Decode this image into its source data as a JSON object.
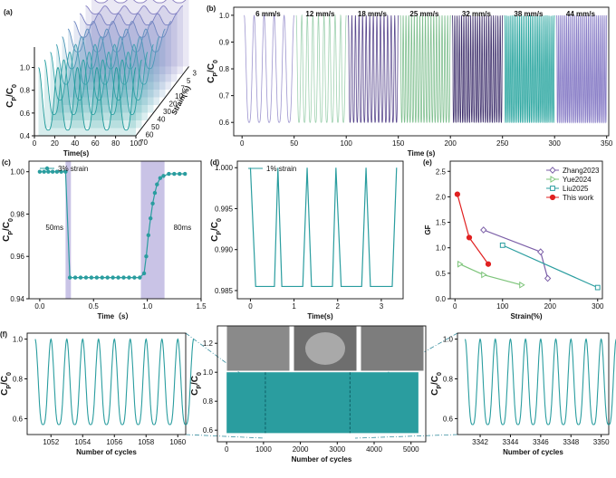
{
  "chart_data": [
    {
      "type": "waterfall",
      "panel": "(a)",
      "xlabel": "Time(s)",
      "ylabel_parts": [
        "C",
        "P",
        "/C",
        "0"
      ],
      "zlabel": "Strain(%)",
      "xlim": [
        0,
        100
      ],
      "ylim": [
        0.4,
        1.1
      ],
      "xticks": [
        0,
        20,
        40,
        60,
        80,
        100
      ],
      "yticks": [
        {
          "value": 0.4,
          "label": "0.4"
        },
        {
          "value": 0.6,
          "label": "0.6"
        },
        {
          "value": 0.8,
          "label": "0.8"
        },
        {
          "value": 1.0,
          "label": "1.0"
        }
      ],
      "cycles": 5,
      "peak": 1.0,
      "series": [
        {
          "name": "3",
          "color": "#8a7fc0",
          "min": 0.96
        },
        {
          "name": "5",
          "color": "#847fc2",
          "min": 0.93
        },
        {
          "name": "7",
          "color": "#7a80c2",
          "min": 0.9
        },
        {
          "name": "10",
          "color": "#6f86c0",
          "min": 0.86
        },
        {
          "name": "20",
          "color": "#5f8fbe",
          "min": 0.8
        },
        {
          "name": "30",
          "color": "#4f98b8",
          "min": 0.72
        },
        {
          "name": "40",
          "color": "#41a0b2",
          "min": 0.65
        },
        {
          "name": "50",
          "color": "#35a3aa",
          "min": 0.58
        },
        {
          "name": "60",
          "color": "#2aa0a2",
          "min": 0.52
        },
        {
          "name": "70",
          "color": "#1f9a9a",
          "min": 0.45
        }
      ]
    },
    {
      "type": "segments",
      "panel": "(b)",
      "xlabel": "Time (s)",
      "ylabel_parts": [
        "C",
        "P",
        "/C",
        "0"
      ],
      "xlim": [
        -8,
        352
      ],
      "ylim": [
        0.55,
        1.03
      ],
      "xticks": [
        0,
        50,
        100,
        150,
        200,
        250,
        300,
        350
      ],
      "yticks": [
        {
          "value": 0.6,
          "label": "0.6"
        },
        0.7,
        0.8,
        0.9,
        {
          "value": 1.0,
          "label": "1.0"
        }
      ],
      "peak": 1.0,
      "series": [
        {
          "name": "6 mm/s",
          "color": "#9d95cf",
          "x": [
            0,
            50
          ],
          "cycles": 5,
          "min": 0.6
        },
        {
          "name": "12 mm/s",
          "color": "#9fd1b0",
          "x": [
            50,
            100
          ],
          "cycles": 9,
          "min": 0.6
        },
        {
          "name": "18 mm/s",
          "color": "#5b4a8f",
          "x": [
            100,
            150
          ],
          "cycles": 14,
          "min": 0.6
        },
        {
          "name": "25 mm/s",
          "color": "#7fbf8f",
          "x": [
            150,
            200
          ],
          "cycles": 18,
          "min": 0.6
        },
        {
          "name": "32 mm/s",
          "color": "#3d2e6b",
          "x": [
            200,
            250
          ],
          "cycles": 22,
          "min": 0.6
        },
        {
          "name": "38 mm/s",
          "color": "#2aa6a0",
          "x": [
            250,
            300
          ],
          "cycles": 27,
          "min": 0.6
        },
        {
          "name": "44 mm/s",
          "color": "#8b80c8",
          "x": [
            300,
            350
          ],
          "cycles": 30,
          "min": 0.6
        }
      ]
    },
    {
      "type": "line",
      "panel": "(c)",
      "xlabel": "Time（s）",
      "ylabel_parts": [
        "C",
        "P",
        "/C",
        "0"
      ],
      "xlim": [
        -0.1,
        1.5
      ],
      "ylim": [
        0.94,
        1.005
      ],
      "xticks": [
        {
          "value": 0,
          "label": "0.0"
        },
        0.5,
        {
          "value": 1,
          "label": "1.0"
        },
        1.5
      ],
      "yticks": [
        0.94,
        0.96,
        0.98,
        {
          "value": 1,
          "label": "1.00"
        }
      ],
      "markers": true,
      "spans": [
        {
          "x": [
            0.24,
            0.29
          ],
          "label": "50ms"
        },
        {
          "x": [
            0.94,
            1.16
          ],
          "label": "80ms"
        }
      ],
      "span_color": "#c9c3e6",
      "series": [
        {
          "name": "3% strain",
          "color": "#2a9d9f",
          "x": [
            0,
            0.04,
            0.08,
            0.12,
            0.16,
            0.2,
            0.24,
            0.28,
            0.33,
            0.38,
            0.43,
            0.48,
            0.53,
            0.58,
            0.63,
            0.68,
            0.73,
            0.78,
            0.83,
            0.88,
            0.93,
            0.97,
            0.99,
            1.01,
            1.03,
            1.05,
            1.07,
            1.09,
            1.12,
            1.15,
            1.2,
            1.25,
            1.3,
            1.35
          ],
          "values": [
            1.0,
            1.0,
            1.0,
            1.0,
            1.0,
            1.0,
            1.0,
            0.95,
            0.95,
            0.95,
            0.95,
            0.95,
            0.95,
            0.95,
            0.95,
            0.95,
            0.95,
            0.95,
            0.95,
            0.95,
            0.95,
            0.952,
            0.96,
            0.97,
            0.978,
            0.985,
            0.99,
            0.994,
            0.997,
            0.998,
            0.999,
            0.999,
            0.999,
            0.999
          ]
        }
      ]
    },
    {
      "type": "line",
      "panel": "(d)",
      "xlabel": "Time(s)",
      "ylabel_parts": [
        "C",
        "P",
        "/C",
        "0"
      ],
      "xlim": [
        -0.3,
        3.5
      ],
      "ylim": [
        0.984,
        1.0008
      ],
      "xticks": [
        0,
        1,
        2,
        3
      ],
      "yticks": [
        0.985,
        {
          "value": 0.99,
          "label": "0.990"
        },
        0.995,
        {
          "value": 1,
          "label": "1.000"
        }
      ],
      "markers": false,
      "series": [
        {
          "name": "1% strain",
          "color": "#2a9d9f",
          "x": [
            0,
            0.12,
            0.55,
            0.63,
            0.72,
            1.2,
            1.3,
            1.4,
            1.88,
            1.96,
            2.08,
            2.55,
            2.65,
            2.75,
            3.25,
            3.35
          ],
          "values": [
            1.0,
            0.9855,
            0.9855,
            1.0,
            0.9855,
            0.9855,
            1.0,
            0.9855,
            0.9855,
            1.0,
            0.9855,
            0.9855,
            1.0,
            0.9855,
            0.9855,
            1.0
          ]
        }
      ]
    },
    {
      "type": "scatterline",
      "panel": "(e)",
      "xlabel": "Strain(%)",
      "ylabel": "GF",
      "xlim": [
        -10,
        310
      ],
      "ylim": [
        0,
        2.7
      ],
      "xticks": [
        0,
        100,
        200,
        300
      ],
      "yticks": [
        {
          "value": 0,
          "label": "0.0"
        },
        0.5,
        {
          "value": 1,
          "label": "1.0"
        },
        1.5,
        {
          "value": 2,
          "label": "2.0"
        },
        2.5
      ],
      "legend": "upper right",
      "series": [
        {
          "name": "Zhang2023",
          "color": "#7b5ea7",
          "marker": "diamond",
          "x": [
            60,
            180,
            195
          ],
          "values": [
            1.35,
            0.92,
            0.4
          ]
        },
        {
          "name": "Yue2024",
          "color": "#7dc47a",
          "marker": "triangle",
          "x": [
            10,
            60,
            140
          ],
          "values": [
            0.68,
            0.47,
            0.27
          ]
        },
        {
          "name": "Liu2025",
          "color": "#2a9d9f",
          "marker": "square",
          "x": [
            100,
            300
          ],
          "values": [
            1.05,
            0.22
          ]
        },
        {
          "name": "This work",
          "color": "#e02020",
          "marker": "circle",
          "x": [
            5,
            30,
            70
          ],
          "values": [
            2.05,
            1.2,
            0.68
          ]
        }
      ]
    },
    {
      "type": "wave",
      "panel": "(f)",
      "xlabel": "Number of cycles",
      "ylabel_parts": [
        "C",
        "P",
        "/C",
        "0"
      ],
      "xlim": [
        1050.5,
        1060.5
      ],
      "ylim": [
        0.52,
        1.03
      ],
      "xticks": [
        1052,
        1054,
        1056,
        1058,
        1060
      ],
      "yticks": [
        {
          "value": 0.6,
          "label": "0.6"
        },
        {
          "value": 0.8,
          "label": "0.8"
        },
        {
          "value": 1.0,
          "label": "1.0"
        }
      ],
      "cycles": 10,
      "min": 0.57,
      "peak": 1.0,
      "color": "#2a9d9f"
    },
    {
      "type": "band",
      "xlabel": "Number of cycles",
      "ylabel_parts": [
        "C",
        "P",
        "/C",
        "0"
      ],
      "xlim": [
        -250,
        5400
      ],
      "ylim": [
        0.52,
        1.32
      ],
      "xticks": [
        0,
        1000,
        2000,
        3000,
        4000,
        5000
      ],
      "yticks": [
        {
          "value": 0.6,
          "label": "0.6"
        },
        {
          "value": 0.8,
          "label": "0.8"
        },
        {
          "value": 1.0,
          "label": "1.0"
        },
        {
          "value": 1.2,
          "label": "1.2"
        }
      ],
      "x": [
        0,
        5200
      ],
      "min": 0.58,
      "peak": 1.0,
      "color": "#2a9d9f",
      "zoom": [
        1050,
        3345
      ]
    },
    {
      "type": "wave",
      "xlabel": "Number of cycles",
      "ylabel_parts": [
        "C",
        "P",
        "/C",
        "0"
      ],
      "xlim": [
        3340.5,
        3350.5
      ],
      "ylim": [
        0.52,
        1.03
      ],
      "xticks": [
        3342,
        3344,
        3346,
        3348,
        3350
      ],
      "yticks": [
        {
          "value": 0.6,
          "label": "0.6"
        },
        {
          "value": 0.8,
          "label": "0.8"
        },
        {
          "value": 1.0,
          "label": "1.0"
        }
      ],
      "cycles": 10,
      "min": 0.57,
      "peak": 1.0,
      "color": "#2a9d9f"
    }
  ]
}
